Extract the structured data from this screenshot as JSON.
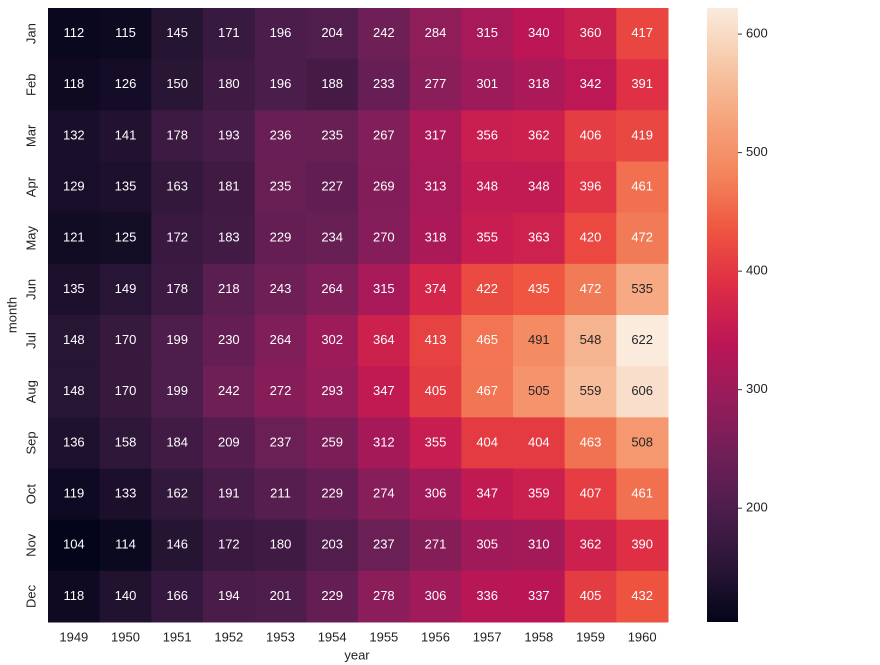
{
  "chart_data": {
    "type": "heatmap",
    "x_label": "year",
    "y_label": "month",
    "x_categories": [
      "1949",
      "1950",
      "1951",
      "1952",
      "1953",
      "1954",
      "1955",
      "1956",
      "1957",
      "1958",
      "1959",
      "1960"
    ],
    "y_categories": [
      "Jan",
      "Feb",
      "Mar",
      "Apr",
      "May",
      "Jun",
      "Jul",
      "Aug",
      "Sep",
      "Oct",
      "Nov",
      "Dec"
    ],
    "values": [
      [
        112,
        115,
        145,
        171,
        196,
        204,
        242,
        284,
        315,
        340,
        360,
        417
      ],
      [
        118,
        126,
        150,
        180,
        196,
        188,
        233,
        277,
        301,
        318,
        342,
        391
      ],
      [
        132,
        141,
        178,
        193,
        236,
        235,
        267,
        317,
        356,
        362,
        406,
        419
      ],
      [
        129,
        135,
        163,
        181,
        235,
        227,
        269,
        313,
        348,
        348,
        396,
        461
      ],
      [
        121,
        125,
        172,
        183,
        229,
        234,
        270,
        318,
        355,
        363,
        420,
        472
      ],
      [
        135,
        149,
        178,
        218,
        243,
        264,
        315,
        374,
        422,
        435,
        472,
        535
      ],
      [
        148,
        170,
        199,
        230,
        264,
        302,
        364,
        413,
        465,
        491,
        548,
        622
      ],
      [
        148,
        170,
        199,
        242,
        272,
        293,
        347,
        405,
        467,
        505,
        559,
        606
      ],
      [
        136,
        158,
        184,
        209,
        237,
        259,
        312,
        355,
        404,
        404,
        463,
        508
      ],
      [
        119,
        133,
        162,
        191,
        211,
        229,
        274,
        306,
        347,
        359,
        407,
        461
      ],
      [
        104,
        114,
        146,
        172,
        180,
        203,
        237,
        271,
        305,
        310,
        362,
        390
      ],
      [
        118,
        140,
        166,
        194,
        201,
        229,
        278,
        306,
        336,
        337,
        405,
        432
      ]
    ],
    "colormap": [
      "#03051a",
      "#2a1636",
      "#4c1d4b",
      "#701f57",
      "#961c5b",
      "#bc1656",
      "#dd2c45",
      "#ef5440",
      "#f3845c",
      "#f6a47c",
      "#f7c8a8",
      "#faebdd"
    ],
    "colorbar_lim": [
      104,
      622
    ],
    "colorbar_ticks": [
      200,
      300,
      400,
      500,
      600
    ]
  }
}
